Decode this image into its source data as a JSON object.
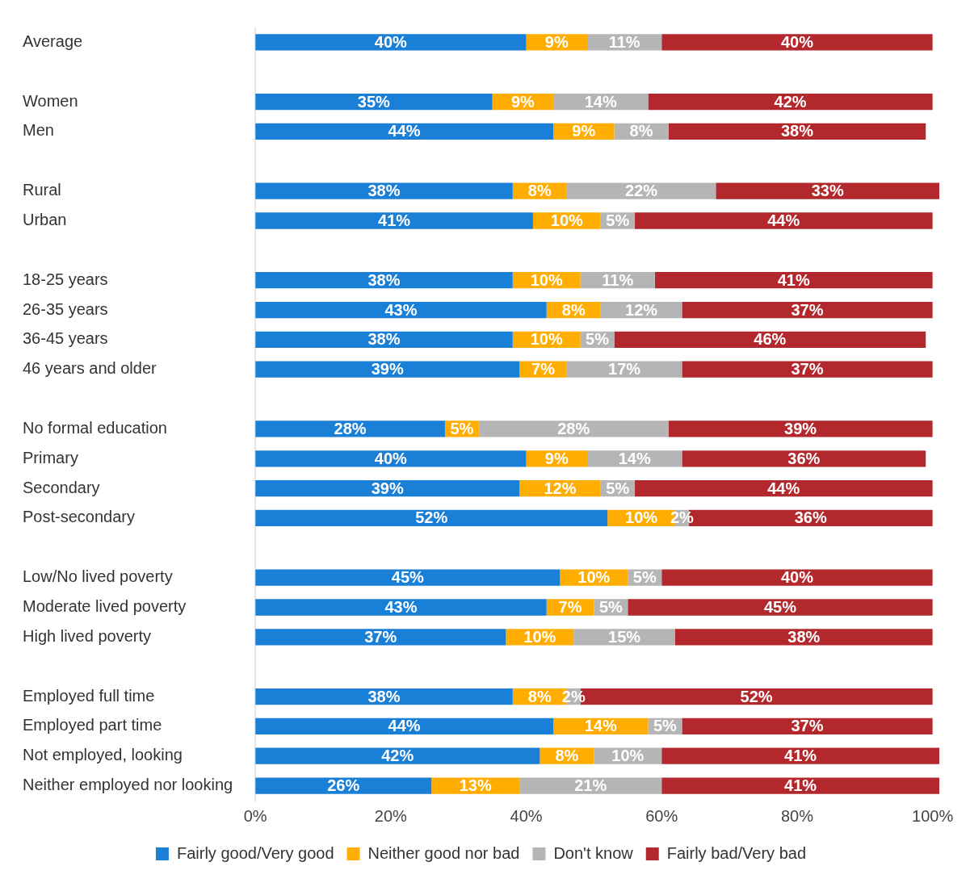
{
  "chart_data": {
    "type": "bar",
    "orientation": "horizontal",
    "stacked": true,
    "categories": [
      "Average",
      null,
      "Women",
      "Men",
      null,
      "Rural",
      "Urban",
      null,
      "18-25 years",
      "26-35 years",
      "36-45 years",
      "46 years and older",
      null,
      "No formal education",
      "Primary",
      "Secondary",
      "Post-secondary",
      null,
      "Low/No lived poverty",
      "Moderate lived poverty",
      "High lived poverty",
      null,
      "Employed full time",
      "Employed part time",
      "Not employed, looking",
      "Neither employed nor looking"
    ],
    "series": [
      {
        "name": "Fairly good/Very good",
        "color": "#1a7fd6",
        "values": [
          40,
          null,
          35,
          44,
          null,
          38,
          41,
          null,
          38,
          43,
          38,
          39,
          null,
          28,
          40,
          39,
          52,
          null,
          45,
          43,
          37,
          null,
          38,
          44,
          42,
          26
        ],
        "value_labels": [
          "40%",
          null,
          "35%",
          "44%",
          null,
          "38%",
          "41%",
          null,
          "38%",
          "43%",
          "38%",
          "39%",
          null,
          "28%",
          "40%",
          "39%",
          "52%",
          null,
          "45%",
          "43%",
          "37%",
          null,
          "38%",
          "44%",
          "42%",
          "26%"
        ]
      },
      {
        "name": "Neither good nor bad",
        "color": "#ffad00",
        "values": [
          9,
          null,
          9,
          9,
          null,
          8,
          10,
          null,
          10,
          8,
          10,
          7,
          null,
          5,
          9,
          12,
          10,
          null,
          10,
          7,
          10,
          null,
          8,
          14,
          8,
          13
        ],
        "value_labels": [
          "9%",
          null,
          "9%",
          "9%",
          null,
          "8%",
          "10%",
          null,
          "10%",
          "8%",
          "10%",
          "7%",
          null,
          "5%",
          "9%",
          "12%",
          "10%",
          null,
          "10%",
          "7%",
          "10%",
          null,
          "8%",
          "14%",
          "8%",
          "13%"
        ]
      },
      {
        "name": "Don't know",
        "color": "#b5b5b5",
        "values": [
          11,
          null,
          14,
          8,
          null,
          22,
          5,
          null,
          11,
          12,
          5,
          17,
          null,
          28,
          14,
          5,
          2,
          null,
          5,
          5,
          15,
          null,
          2,
          5,
          10,
          21
        ],
        "value_labels": [
          "11%",
          null,
          "14%",
          "8%",
          null,
          "22%",
          "5%",
          null,
          "11%",
          "12%",
          "5%",
          "17%",
          null,
          "28%",
          "14%",
          "5%",
          "2%",
          null,
          "5%",
          "5%",
          "15%",
          null,
          "2%",
          "5%",
          "10%",
          "21%"
        ]
      },
      {
        "name": "Fairly bad/Very bad",
        "color": "#b3282d",
        "values": [
          40,
          null,
          42,
          38,
          null,
          33,
          44,
          null,
          41,
          37,
          46,
          37,
          null,
          39,
          36,
          44,
          36,
          null,
          40,
          45,
          38,
          null,
          52,
          37,
          41,
          41
        ],
        "value_labels": [
          "40%",
          null,
          "42%",
          "38%",
          null,
          "33%",
          "44%",
          null,
          "41%",
          "37%",
          "46%",
          "37%",
          null,
          "39%",
          "36%",
          "44%",
          "36%",
          null,
          "40%",
          "45%",
          "38%",
          null,
          "52%",
          "37%",
          "41%",
          "41%"
        ]
      }
    ],
    "xlim": [
      0,
      101
    ],
    "xticks": [
      {
        "value": 0,
        "label": "0%"
      },
      {
        "value": 20,
        "label": "20%"
      },
      {
        "value": 40,
        "label": "40%"
      },
      {
        "value": 60,
        "label": "60%"
      },
      {
        "value": 80,
        "label": "80%"
      },
      {
        "value": 100,
        "label": "100%"
      }
    ],
    "grid": false,
    "legend": "bottom"
  }
}
